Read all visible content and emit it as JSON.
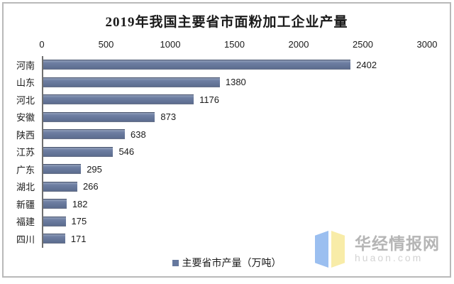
{
  "title": "2019年我国主要省市面粉加工企业产量",
  "chart_data": {
    "type": "bar",
    "orientation": "horizontal",
    "title": "2019年我国主要省市面粉加工企业产量",
    "categories": [
      "河南",
      "山东",
      "河北",
      "安徽",
      "陕西",
      "江苏",
      "广东",
      "湖北",
      "新疆",
      "福建",
      "四川"
    ],
    "values": [
      2402,
      1380,
      1176,
      873,
      638,
      546,
      295,
      266,
      182,
      175,
      171
    ],
    "series_name": "主要省市产量（万吨）",
    "xlabel": "",
    "ylabel": "",
    "xlim": [
      0,
      3000
    ],
    "x_ticks": [
      0,
      500,
      1000,
      1500,
      2000,
      2500,
      3000
    ],
    "grid": false,
    "legend_position": "bottom",
    "bar_color": "#66789e",
    "data_labels": true
  },
  "legend": {
    "marker_color": "#66789e",
    "label": "主要省市产量（万吨）"
  },
  "watermark": {
    "site_name": "华经情报网",
    "site_url": "huaon.com",
    "logo_left_color": "#9bbff0",
    "logo_right_color": "#f8eca8"
  }
}
